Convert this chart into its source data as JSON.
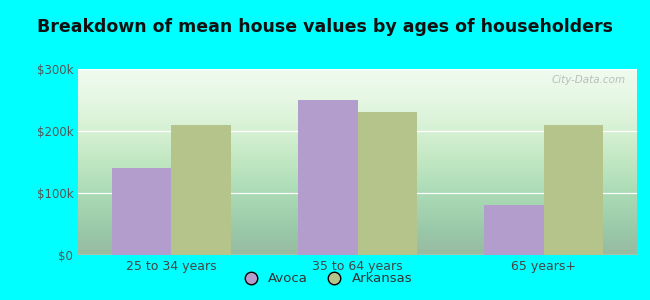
{
  "categories": [
    "25 to 34 years",
    "35 to 64 years",
    "65 years+"
  ],
  "avoca_values": [
    140000,
    250000,
    80000
  ],
  "arkansas_values": [
    210000,
    230000,
    210000
  ],
  "avoca_color": "#b39dcc",
  "arkansas_color": "#b5c48a",
  "title": "Breakdown of mean house values by ages of householders",
  "title_fontsize": 12.5,
  "ylim": [
    0,
    300000
  ],
  "yticks": [
    0,
    100000,
    200000,
    300000
  ],
  "ytick_labels": [
    "$0",
    "$100k",
    "$200k",
    "$300k"
  ],
  "legend_labels": [
    "Avoca",
    "Arkansas"
  ],
  "figure_bg_color": "#00ffff",
  "plot_bg_top": "#f0fff0",
  "plot_bg_bottom": "#d8f0d8",
  "bar_width": 0.32,
  "watermark": "City-Data.com"
}
